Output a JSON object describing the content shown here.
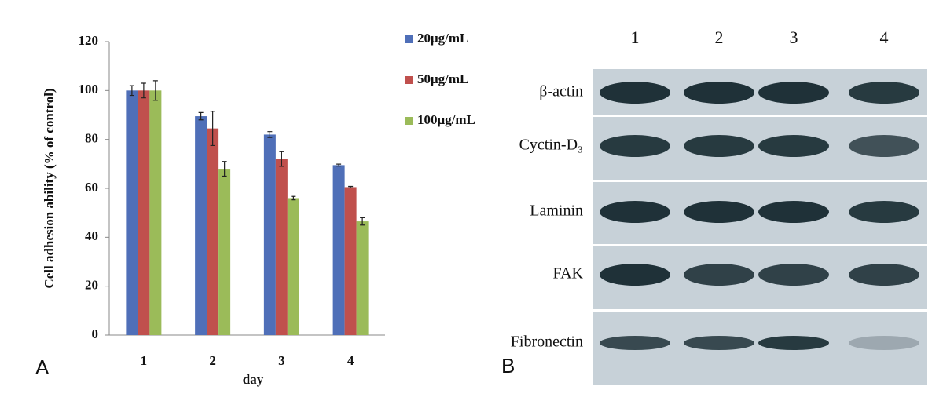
{
  "chart_data": {
    "type": "bar",
    "panel_label": "A",
    "x_label": "day",
    "y_label": "Cell adhesion ability (% of control)",
    "categories": [
      "1",
      "2",
      "3",
      "4"
    ],
    "series": [
      {
        "name": "20μg/mL",
        "color": "#4f6fb8",
        "values": [
          100,
          89.5,
          82,
          69.5
        ],
        "errors": [
          2,
          1.5,
          1.2,
          0.4
        ]
      },
      {
        "name": "50μg/mL",
        "color": "#c0504d",
        "values": [
          100,
          84.5,
          72,
          60.5
        ],
        "errors": [
          3,
          7,
          3,
          0.3
        ]
      },
      {
        "name": "100μg/mL",
        "color": "#9bbb59",
        "values": [
          100,
          68,
          56,
          46.5
        ],
        "errors": [
          4,
          3,
          0.7,
          1.5
        ]
      }
    ],
    "ylim": [
      0,
      120
    ],
    "yticks": [
      0,
      20,
      40,
      60,
      80,
      100,
      120
    ],
    "grid": false
  },
  "blot": {
    "panel_label": "B",
    "lanes": [
      "1",
      "2",
      "3",
      "4"
    ],
    "rows": [
      "β-actin",
      "Cyctin-D₃",
      "Laminin",
      "FAK",
      "Fibronectin"
    ]
  }
}
